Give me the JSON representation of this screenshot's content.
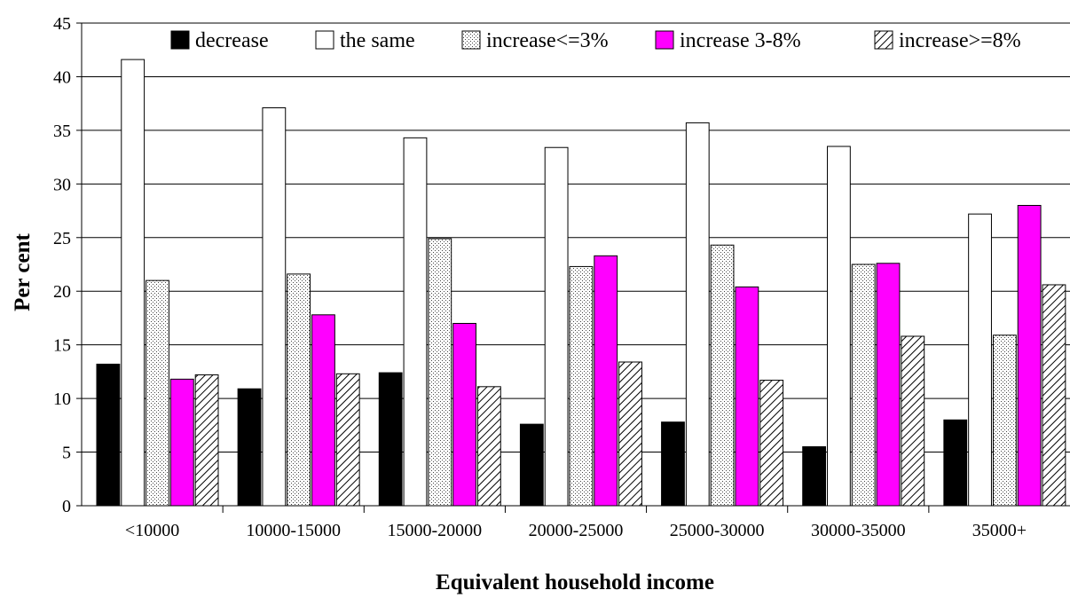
{
  "chart_data": {
    "type": "bar",
    "title": "",
    "xlabel": "Equivalent household income",
    "ylabel": "Per cent",
    "ylim": [
      0,
      45
    ],
    "yticks": [
      0,
      5,
      10,
      15,
      20,
      25,
      30,
      35,
      40,
      45
    ],
    "grid": true,
    "legend_position": "top",
    "categories": [
      "<10000",
      "10000-15000",
      "15000-20000",
      "20000-25000",
      "25000-30000",
      "30000-35000",
      "35000+"
    ],
    "series": [
      {
        "name": "decrease",
        "fill": "#000000",
        "pattern": "solid",
        "values": [
          13.2,
          10.9,
          12.4,
          7.6,
          7.8,
          5.5,
          8.0
        ]
      },
      {
        "name": "the same",
        "fill": "#ffffff",
        "pattern": "solid",
        "values": [
          41.6,
          37.1,
          34.3,
          33.4,
          35.7,
          33.5,
          27.2
        ]
      },
      {
        "name": "increase<=3%",
        "fill": "#ffffff",
        "pattern": "dots",
        "values": [
          21.0,
          21.6,
          24.9,
          22.3,
          24.3,
          22.5,
          15.9
        ]
      },
      {
        "name": "increase 3-8%",
        "fill": "#ff00ff",
        "pattern": "solid",
        "values": [
          11.8,
          17.8,
          17.0,
          23.3,
          20.4,
          22.6,
          28.0
        ]
      },
      {
        "name": "increase>=8%",
        "fill": "#ffffff",
        "pattern": "hatch",
        "values": [
          12.2,
          12.3,
          11.1,
          13.4,
          11.7,
          15.8,
          20.6
        ]
      }
    ]
  }
}
